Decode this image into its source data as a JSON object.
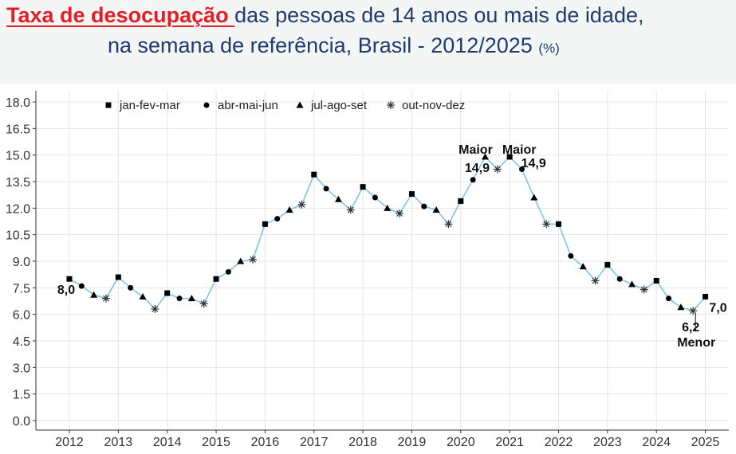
{
  "header": {
    "title_highlight": "Taxa de desocupação ",
    "title_rest": "das pessoas de 14 anos ou mais de idade,",
    "title_line2": "na semana de referência, Brasil - 2012/2025 ",
    "unit": "(%)"
  },
  "colors": {
    "header_bg": "#f4f5f5",
    "title_text": "#1f3b6e",
    "title_highlight": "#e31e24",
    "line": "#7fc3ea",
    "markers": "#000000",
    "grid": "#e4e4e4"
  },
  "chart_data": {
    "type": "line",
    "title": "",
    "xlabel": "",
    "ylabel": "",
    "ylim": [
      0,
      18
    ],
    "yticks": [
      "0.0",
      "1.5",
      "3.0",
      "4.5",
      "6.0",
      "7.5",
      "9.0",
      "10.5",
      "12.0",
      "13.5",
      "15.0",
      "16.5",
      "18.0"
    ],
    "xticks": [
      "2012",
      "2013",
      "2014",
      "2015",
      "2016",
      "2017",
      "2018",
      "2019",
      "2020",
      "2021",
      "2022",
      "2023",
      "2024",
      "2025"
    ],
    "grid": true,
    "legend_position": "top-left",
    "legend": [
      {
        "label": "jan-fev-mar",
        "marker": "square"
      },
      {
        "label": "abr-mai-jun",
        "marker": "circle"
      },
      {
        "label": "jul-ago-set",
        "marker": "triangle"
      },
      {
        "label": "out-nov-dez",
        "marker": "asterisk"
      }
    ],
    "series": [
      {
        "year": 2012,
        "q": 1,
        "value": 8.0
      },
      {
        "year": 2012,
        "q": 2,
        "value": 7.6
      },
      {
        "year": 2012,
        "q": 3,
        "value": 7.1
      },
      {
        "year": 2012,
        "q": 4,
        "value": 6.9
      },
      {
        "year": 2013,
        "q": 1,
        "value": 8.1
      },
      {
        "year": 2013,
        "q": 2,
        "value": 7.5
      },
      {
        "year": 2013,
        "q": 3,
        "value": 7.0
      },
      {
        "year": 2013,
        "q": 4,
        "value": 6.3
      },
      {
        "year": 2014,
        "q": 1,
        "value": 7.2
      },
      {
        "year": 2014,
        "q": 2,
        "value": 6.9
      },
      {
        "year": 2014,
        "q": 3,
        "value": 6.9
      },
      {
        "year": 2014,
        "q": 4,
        "value": 6.6
      },
      {
        "year": 2015,
        "q": 1,
        "value": 8.0
      },
      {
        "year": 2015,
        "q": 2,
        "value": 8.4
      },
      {
        "year": 2015,
        "q": 3,
        "value": 9.0
      },
      {
        "year": 2015,
        "q": 4,
        "value": 9.1
      },
      {
        "year": 2016,
        "q": 1,
        "value": 11.1
      },
      {
        "year": 2016,
        "q": 2,
        "value": 11.4
      },
      {
        "year": 2016,
        "q": 3,
        "value": 11.9
      },
      {
        "year": 2016,
        "q": 4,
        "value": 12.2
      },
      {
        "year": 2017,
        "q": 1,
        "value": 13.9
      },
      {
        "year": 2017,
        "q": 2,
        "value": 13.1
      },
      {
        "year": 2017,
        "q": 3,
        "value": 12.5
      },
      {
        "year": 2017,
        "q": 4,
        "value": 11.9
      },
      {
        "year": 2018,
        "q": 1,
        "value": 13.2
      },
      {
        "year": 2018,
        "q": 2,
        "value": 12.6
      },
      {
        "year": 2018,
        "q": 3,
        "value": 12.0
      },
      {
        "year": 2018,
        "q": 4,
        "value": 11.7
      },
      {
        "year": 2019,
        "q": 1,
        "value": 12.8
      },
      {
        "year": 2019,
        "q": 2,
        "value": 12.1
      },
      {
        "year": 2019,
        "q": 3,
        "value": 11.9
      },
      {
        "year": 2019,
        "q": 4,
        "value": 11.1
      },
      {
        "year": 2020,
        "q": 1,
        "value": 12.4
      },
      {
        "year": 2020,
        "q": 2,
        "value": 13.6
      },
      {
        "year": 2020,
        "q": 3,
        "value": 14.9
      },
      {
        "year": 2020,
        "q": 4,
        "value": 14.2
      },
      {
        "year": 2021,
        "q": 1,
        "value": 14.9
      },
      {
        "year": 2021,
        "q": 2,
        "value": 14.2
      },
      {
        "year": 2021,
        "q": 3,
        "value": 12.6
      },
      {
        "year": 2021,
        "q": 4,
        "value": 11.1
      },
      {
        "year": 2022,
        "q": 1,
        "value": 11.1
      },
      {
        "year": 2022,
        "q": 2,
        "value": 9.3
      },
      {
        "year": 2022,
        "q": 3,
        "value": 8.7
      },
      {
        "year": 2022,
        "q": 4,
        "value": 7.9
      },
      {
        "year": 2023,
        "q": 1,
        "value": 8.8
      },
      {
        "year": 2023,
        "q": 2,
        "value": 8.0
      },
      {
        "year": 2023,
        "q": 3,
        "value": 7.7
      },
      {
        "year": 2023,
        "q": 4,
        "value": 7.4
      },
      {
        "year": 2024,
        "q": 1,
        "value": 7.9
      },
      {
        "year": 2024,
        "q": 2,
        "value": 6.9
      },
      {
        "year": 2024,
        "q": 3,
        "value": 6.4
      },
      {
        "year": 2024,
        "q": 4,
        "value": 6.2
      },
      {
        "year": 2025,
        "q": 1,
        "value": 7.0
      }
    ],
    "annotations": [
      {
        "text": "8,0",
        "point": "2012-1"
      },
      {
        "text": "Maior",
        "point": "2020-3"
      },
      {
        "text": "14,9",
        "point": "2020-3"
      },
      {
        "text": "Maior",
        "point": "2021-1"
      },
      {
        "text": "14,9",
        "point": "2021-1"
      },
      {
        "text": "6,2",
        "point": "2024-4"
      },
      {
        "text": "Menor",
        "point": "2024-4"
      },
      {
        "text": "7,0",
        "point": "2025-1"
      }
    ]
  }
}
